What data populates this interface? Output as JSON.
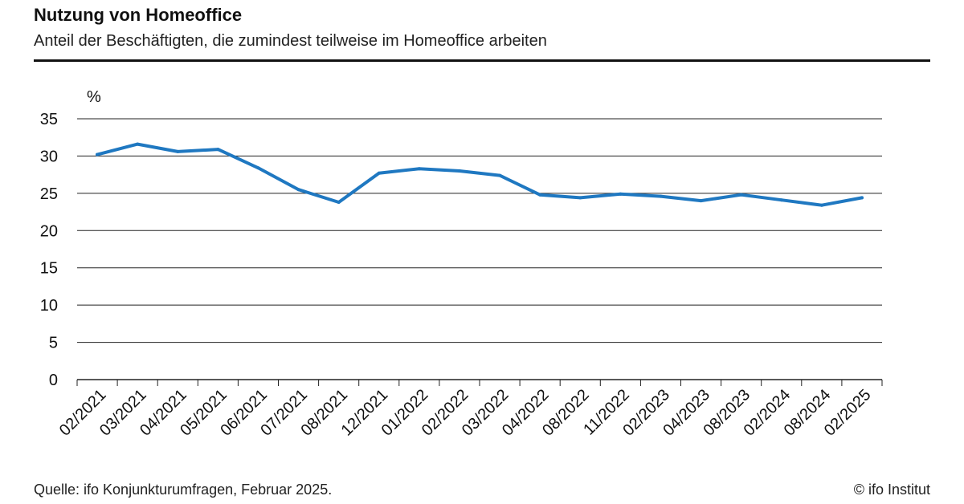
{
  "header": {
    "title": "Nutzung von Homeoffice",
    "subtitle": "Anteil der Beschäftigten, die zumindest teilweise im Homeoffice arbeiten"
  },
  "footer": {
    "source": "Quelle: ifo Konjunkturumfragen, Februar 2025.",
    "copyright": "© ifo Institut"
  },
  "chart_data": {
    "type": "line",
    "title": "Nutzung von Homeoffice",
    "subtitle": "Anteil der Beschäftigten, die zumindest teilweise im Homeoffice arbeiten",
    "ylabel": "%",
    "xlabel": "",
    "ylim": [
      0,
      35
    ],
    "yticks": [
      0,
      5,
      10,
      15,
      20,
      25,
      30,
      35
    ],
    "grid": true,
    "categories": [
      "02/2021",
      "03/2021",
      "04/2021",
      "05/2021",
      "06/2021",
      "07/2021",
      "08/2021",
      "12/2021",
      "01/2022",
      "02/2022",
      "03/2022",
      "04/2022",
      "08/2022",
      "11/2022",
      "02/2023",
      "04/2023",
      "08/2023",
      "02/2024",
      "08/2024",
      "02/2025"
    ],
    "series": [
      {
        "color": "#1f78c1",
        "values": [
          30.2,
          31.6,
          30.6,
          30.9,
          28.4,
          25.5,
          23.8,
          27.7,
          28.3,
          28.0,
          27.4,
          24.8,
          24.4,
          24.9,
          24.6,
          24.0,
          24.8,
          24.1,
          23.4,
          24.4
        ]
      }
    ]
  }
}
